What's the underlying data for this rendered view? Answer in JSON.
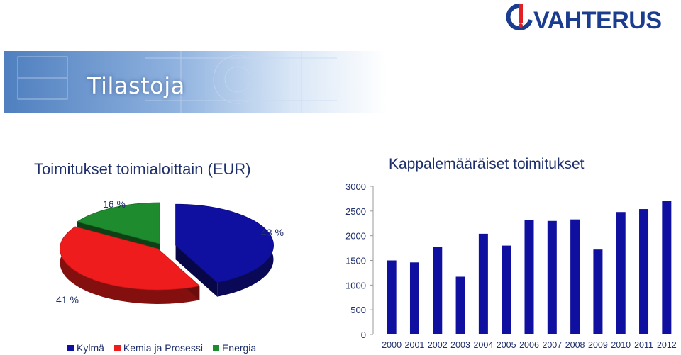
{
  "banner": {
    "title": "Tilastoja"
  },
  "logo": {
    "text": "VAHTERUS"
  },
  "pie_chart": {
    "title": "Toimitukset toimialoittain (EUR)",
    "labels": [
      "16 %",
      "43 %",
      "41 %"
    ]
  },
  "bar_chart": {
    "title": "Kappalemääräiset toimitukset"
  },
  "colors": {
    "kylma": "#1010a0",
    "kemia": "#ee1c1c",
    "energia": "#1e8b2e"
  },
  "chart_data": [
    {
      "type": "pie",
      "title": "Toimitukset toimialoittain (EUR)",
      "categories": [
        "Kylmä",
        "Kemia ja Prosessi",
        "Energia"
      ],
      "values": [
        43,
        41,
        16
      ],
      "value_labels": [
        "43 %",
        "41 %",
        "16 %"
      ],
      "legend": "bottom",
      "three_d": true
    },
    {
      "type": "bar",
      "title": "Kappalemääräiset toimitukset",
      "categories": [
        "2000",
        "2001",
        "2002",
        "2003",
        "2004",
        "2005",
        "2006",
        "2007",
        "2008",
        "2009",
        "2010",
        "2011",
        "2012"
      ],
      "values": [
        1500,
        1460,
        1770,
        1170,
        2040,
        1800,
        2320,
        2300,
        2330,
        1720,
        2480,
        2540,
        2710
      ],
      "ylim": [
        0,
        3000
      ],
      "yticks": [
        0,
        500,
        1000,
        1500,
        2000,
        2500,
        3000
      ],
      "grid": false,
      "color": "#1010a0"
    }
  ]
}
